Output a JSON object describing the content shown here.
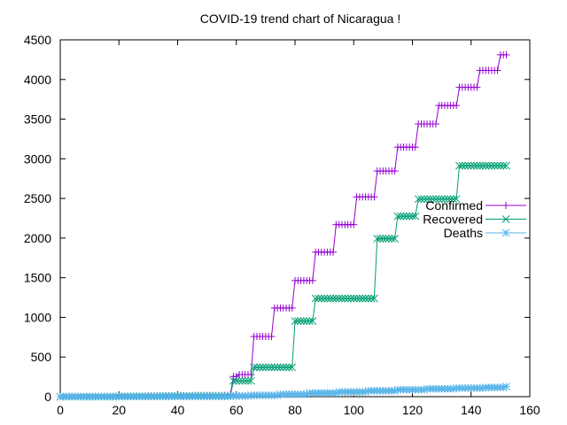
{
  "chart_data": {
    "type": "line",
    "title": "COVID-19 trend chart of Nicaragua !",
    "xlabel": "",
    "ylabel": "",
    "xlim": [
      0,
      160
    ],
    "ylim": [
      0,
      4500
    ],
    "x_ticks": [
      0,
      20,
      40,
      60,
      80,
      100,
      120,
      140,
      160
    ],
    "y_ticks": [
      0,
      500,
      1000,
      1500,
      2000,
      2500,
      3000,
      3500,
      4000,
      4500
    ],
    "grid": false,
    "legend_position": "right",
    "series": [
      {
        "name": "Confirmed",
        "color": "#9400d3",
        "marker": "plus",
        "steps": [
          [
            0,
            0
          ],
          [
            10,
            1
          ],
          [
            20,
            5
          ],
          [
            30,
            10
          ],
          [
            45,
            15
          ],
          [
            58,
            25
          ],
          [
            59,
            254
          ],
          [
            61,
            279
          ],
          [
            66,
            759
          ],
          [
            73,
            1118
          ],
          [
            80,
            1464
          ],
          [
            87,
            1823
          ],
          [
            94,
            2170
          ],
          [
            101,
            2519
          ],
          [
            108,
            2846
          ],
          [
            115,
            3147
          ],
          [
            122,
            3439
          ],
          [
            129,
            3672
          ],
          [
            136,
            3902
          ],
          [
            143,
            4115
          ],
          [
            150,
            4311
          ],
          [
            152,
            4311
          ]
        ]
      },
      {
        "name": "Recovered",
        "color": "#009e73",
        "marker": "cross",
        "steps": [
          [
            0,
            0
          ],
          [
            20,
            4
          ],
          [
            35,
            7
          ],
          [
            58,
            7
          ],
          [
            59,
            199
          ],
          [
            66,
            370
          ],
          [
            80,
            953
          ],
          [
            87,
            1238
          ],
          [
            108,
            1993
          ],
          [
            115,
            2275
          ],
          [
            122,
            2492
          ],
          [
            136,
            2913
          ],
          [
            152,
            2913
          ]
        ]
      },
      {
        "name": "Deaths",
        "color": "#56b4e9",
        "marker": "star",
        "steps": [
          [
            0,
            0
          ],
          [
            25,
            1
          ],
          [
            45,
            2
          ],
          [
            58,
            8
          ],
          [
            65,
            17
          ],
          [
            75,
            30
          ],
          [
            85,
            46
          ],
          [
            95,
            60
          ],
          [
            105,
            74
          ],
          [
            115,
            87
          ],
          [
            125,
            99
          ],
          [
            135,
            108
          ],
          [
            145,
            116
          ],
          [
            152,
            128
          ]
        ]
      }
    ]
  }
}
